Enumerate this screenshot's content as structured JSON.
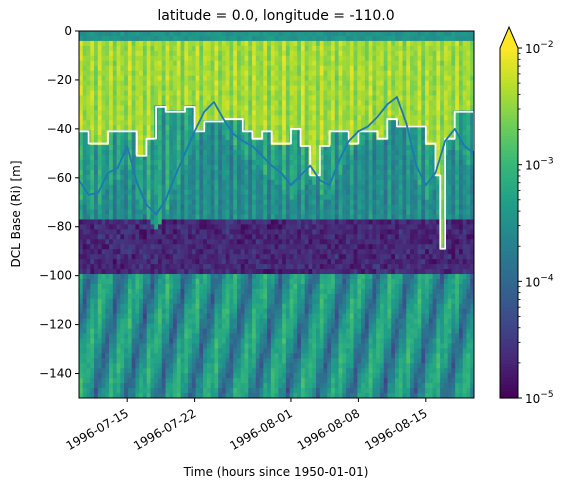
{
  "chart_data": {
    "type": "heatmap",
    "title": "latitude = 0.0, longitude = -110.0",
    "xlabel": "Time (hours since 1950-01-01)",
    "ylabel": "DCL Base (Ri) [m]",
    "x_range": [
      "1996-07-10",
      "1996-08-20"
    ],
    "ylim": [
      -150,
      0
    ],
    "x_ticks": [
      "1996-07-15",
      "1996-07-22",
      "1996-08-01",
      "1996-08-08",
      "1996-08-15"
    ],
    "y_ticks": [
      0,
      -20,
      -40,
      -60,
      -80,
      -100,
      -120,
      -140
    ],
    "colorbar": {
      "scale": "log",
      "range": [
        1e-05,
        0.01
      ],
      "colormap": "viridis",
      "extend": "max",
      "ticks": [
        {
          "value": 0.01,
          "base": "10",
          "exp": "−2"
        },
        {
          "value": 0.001,
          "base": "10",
          "exp": "−3"
        },
        {
          "value": 0.0001,
          "base": "10",
          "exp": "−4"
        },
        {
          "value": 1e-05,
          "base": "10",
          "exp": "−5"
        }
      ]
    },
    "series": [
      {
        "color": "#ffffff",
        "style": "step",
        "x": [
          "1996-07-10",
          "1996-07-11",
          "1996-07-13",
          "1996-07-16",
          "1996-07-17",
          "1996-07-18",
          "1996-07-19",
          "1996-07-21",
          "1996-07-22",
          "1996-07-23",
          "1996-07-25",
          "1996-07-27",
          "1996-07-28",
          "1996-07-29",
          "1996-07-30",
          "1996-08-01",
          "1996-08-02",
          "1996-08-03",
          "1996-08-04",
          "1996-08-05",
          "1996-08-07",
          "1996-08-08",
          "1996-08-10",
          "1996-08-11",
          "1996-08-12",
          "1996-08-14",
          "1996-08-15",
          "1996-08-16",
          "1996-08-16T12",
          "1996-08-17",
          "1996-08-18",
          "1996-08-19",
          "1996-08-20"
        ],
        "y": [
          -41,
          -46,
          -41,
          -51,
          -44,
          -31,
          -33,
          -31,
          -41,
          -37,
          -36,
          -41,
          -44,
          -41,
          -46,
          -40,
          -47,
          -59,
          -47,
          -41,
          -46,
          -41,
          -44,
          -36,
          -39,
          -39,
          -46,
          -59,
          -89,
          -44,
          -33,
          -33,
          -49
        ]
      },
      {
        "color": "#1f77b4",
        "style": "line",
        "x": [
          "1996-07-10",
          "1996-07-11",
          "1996-07-12",
          "1996-07-13",
          "1996-07-14",
          "1996-07-15",
          "1996-07-16",
          "1996-07-17",
          "1996-07-18",
          "1996-07-19",
          "1996-07-20",
          "1996-07-21",
          "1996-07-22",
          "1996-07-23",
          "1996-07-24",
          "1996-07-25",
          "1996-07-26",
          "1996-07-27",
          "1996-07-28",
          "1996-07-29",
          "1996-07-30",
          "1996-07-31",
          "1996-08-01",
          "1996-08-02",
          "1996-08-03",
          "1996-08-04",
          "1996-08-05",
          "1996-08-06",
          "1996-08-07",
          "1996-08-08",
          "1996-08-09",
          "1996-08-10",
          "1996-08-11",
          "1996-08-12",
          "1996-08-13",
          "1996-08-14",
          "1996-08-15",
          "1996-08-16",
          "1996-08-17",
          "1996-08-18",
          "1996-08-19",
          "1996-08-20"
        ],
        "y": [
          -61,
          -67,
          -66,
          -58,
          -56,
          -47,
          -62,
          -71,
          -75,
          -69,
          -59,
          -50,
          -41,
          -33,
          -29,
          -36,
          -42,
          -45,
          -47,
          -51,
          -55,
          -58,
          -63,
          -59,
          -55,
          -61,
          -63,
          -53,
          -45,
          -41,
          -39,
          -35,
          -30,
          -27,
          -38,
          -55,
          -63,
          -58,
          -45,
          -40,
          -47,
          -50
        ]
      }
    ]
  }
}
